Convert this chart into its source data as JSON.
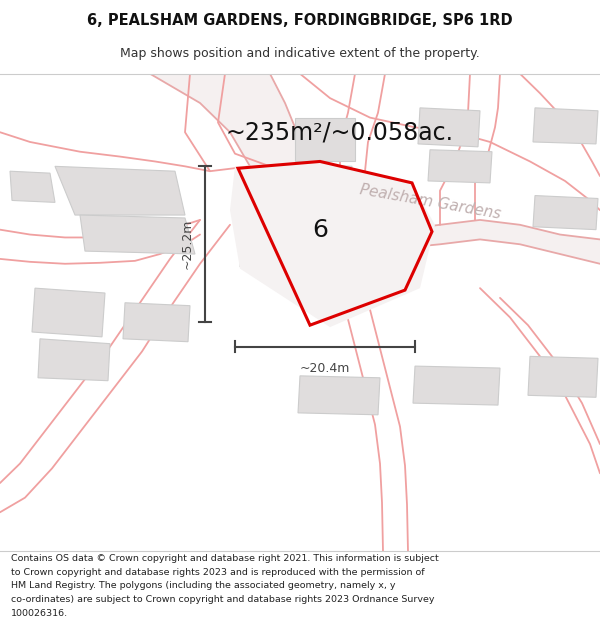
{
  "title_line1": "6, PEALSHAM GARDENS, FORDINGBRIDGE, SP6 1RD",
  "title_line2": "Map shows position and indicative extent of the property.",
  "area_text": "~235m²/~0.058ac.",
  "street_label": "Pealsham Gardens",
  "house_number": "6",
  "dim_height": "~25.2m",
  "dim_width": "~20.4m",
  "footer_lines": [
    "Contains OS data © Crown copyright and database right 2021. This information is subject",
    "to Crown copyright and database rights 2023 and is reproduced with the permission of",
    "HM Land Registry. The polygons (including the associated geometry, namely x, y",
    "co-ordinates) are subject to Crown copyright and database rights 2023 Ordnance Survey",
    "100026316."
  ],
  "map_bg": "#f7f5f5",
  "road_fill": "#f0ecec",
  "building_fill": "#e0dddd",
  "building_edge": "#cccccc",
  "road_line_color": "#f0a0a0",
  "red_outline": "#dd0000",
  "dim_color": "#444444",
  "street_color": "#c0b0b0",
  "title_fontsize": 10.5,
  "subtitle_fontsize": 9,
  "area_fontsize": 17,
  "footer_fontsize": 6.8,
  "number_fontsize": 18,
  "street_fontsize": 11
}
